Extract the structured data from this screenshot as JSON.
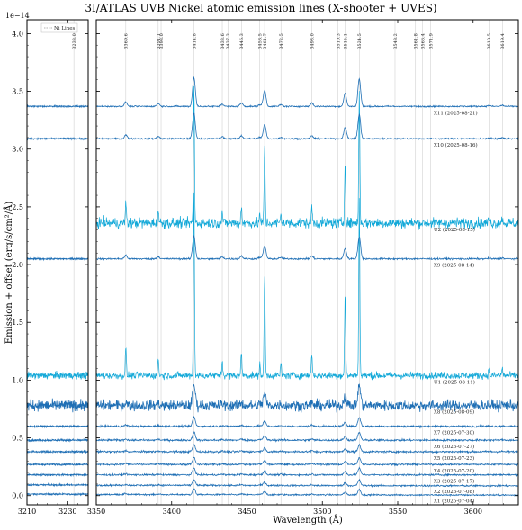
{
  "chart_data": {
    "type": "line",
    "title": "3I/ATLAS UVB Nickel atomic emission lines (X-shooter + UVES)",
    "xlabel": "Wavelength (Å)",
    "ylabel": "Emission + offset (erg/s/cm²/Å)",
    "y_scale_label": "1e−14",
    "legend": {
      "label": "Ni Lines",
      "position": "top-left"
    },
    "panels": [
      {
        "xlim": [
          3210,
          3240
        ],
        "xticks": [
          3210,
          3230
        ]
      },
      {
        "xlim": [
          3350,
          3630
        ],
        "xticks": [
          3350,
          3400,
          3450,
          3500,
          3550,
          3600
        ]
      }
    ],
    "ylim": [
      -0.08,
      4.12
    ],
    "yticks": [
      "0.0",
      "0.5",
      "1.0",
      "1.5",
      "2.0",
      "2.5",
      "3.0",
      "3.5",
      "4.0"
    ],
    "ni_lines": [
      {
        "x": 3233.0,
        "label": "3233.0"
      },
      {
        "x": 3369.6,
        "label": "3369.6"
      },
      {
        "x": 3391.1,
        "label": "3391.1"
      },
      {
        "x": 3393.0,
        "label": "3393.0"
      },
      {
        "x": 3414.8,
        "label": "3414.8"
      },
      {
        "x": 3433.6,
        "label": "3433.6"
      },
      {
        "x": 3437.3,
        "label": "3437.3"
      },
      {
        "x": 3446.3,
        "label": "3446.3"
      },
      {
        "x": 3458.5,
        "label": "3458.5"
      },
      {
        "x": 3461.7,
        "label": "3461.7"
      },
      {
        "x": 3472.5,
        "label": "3472.5"
      },
      {
        "x": 3493.0,
        "label": "3493.0"
      },
      {
        "x": 3510.3,
        "label": "3510.3"
      },
      {
        "x": 3515.1,
        "label": "3515.1"
      },
      {
        "x": 3524.5,
        "label": "3524.5"
      },
      {
        "x": 3548.2,
        "label": "3548.2"
      },
      {
        "x": 3561.8,
        "label": "3561.8"
      },
      {
        "x": 3566.4,
        "label": "3566.4"
      },
      {
        "x": 3571.9,
        "label": "3571.9"
      },
      {
        "x": 3610.5,
        "label": "3610.5"
      },
      {
        "x": 3619.4,
        "label": "3619.4"
      }
    ],
    "series": [
      {
        "name": "X1 (2025-07-04)",
        "offset": 0.01,
        "noise": 0.006,
        "scale": 0.05,
        "color": "#1f6fb5",
        "left": true
      },
      {
        "name": "X2 (2025-07-08)",
        "offset": 0.09,
        "noise": 0.007,
        "scale": 0.05,
        "color": "#1f6fb5",
        "left": true
      },
      {
        "name": "X3 (2025-07-17)",
        "offset": 0.18,
        "noise": 0.007,
        "scale": 0.06,
        "color": "#1f6fb5",
        "left": true
      },
      {
        "name": "X4 (2025-07-20)",
        "offset": 0.27,
        "noise": 0.007,
        "scale": 0.06,
        "color": "#1f6fb5",
        "left": true
      },
      {
        "name": "X5 (2025-07-23)",
        "offset": 0.38,
        "noise": 0.008,
        "scale": 0.06,
        "color": "#1f6fb5",
        "left": true
      },
      {
        "name": "X6 (2025-07-27)",
        "offset": 0.48,
        "noise": 0.008,
        "scale": 0.07,
        "color": "#1f6fb5",
        "left": true
      },
      {
        "name": "X7 (2025-07-30)",
        "offset": 0.6,
        "noise": 0.008,
        "scale": 0.08,
        "color": "#1f6fb5",
        "left": true
      },
      {
        "name": "X8 (2025-08-09)",
        "offset": 0.78,
        "noise": 0.045,
        "scale": 0.18,
        "color": "#1f6fb5",
        "left": true
      },
      {
        "name": "U1 (2025-08-11)",
        "offset": 1.04,
        "noise": 0.02,
        "scale": 1.6,
        "color": "#12a8d8",
        "left": true
      },
      {
        "name": "X9 (2025-08-14)",
        "offset": 2.05,
        "noise": 0.007,
        "scale": 0.2,
        "color": "#1f6fb5",
        "left": true
      },
      {
        "name": "U2 (2025-08-15)",
        "offset": 2.36,
        "noise": 0.03,
        "scale": 1.2,
        "color": "#12a8d8",
        "left": false
      },
      {
        "name": "X10 (2025-08-16)",
        "offset": 3.09,
        "noise": 0.006,
        "scale": 0.22,
        "color": "#1f6fb5",
        "left": true
      },
      {
        "name": "X11 (2025-08-21)",
        "offset": 3.37,
        "noise": 0.006,
        "scale": 0.25,
        "color": "#1f6fb5",
        "left": true
      }
    ]
  }
}
